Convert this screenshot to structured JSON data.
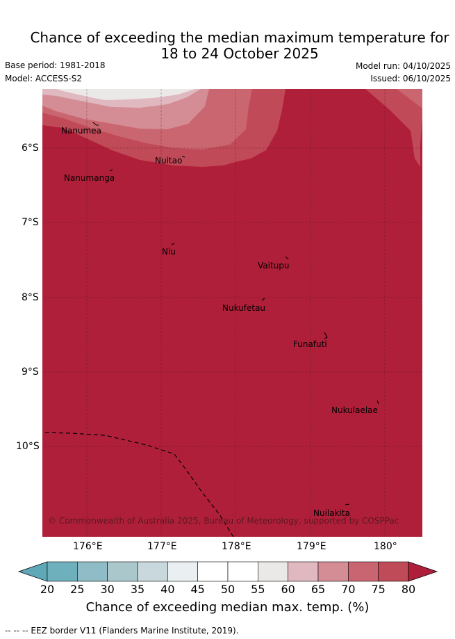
{
  "title": {
    "line1": "Chance of exceeding the median maximum temperature for",
    "line2": "18 to 24 October 2025"
  },
  "meta": {
    "base_period": "Base period: 1981-2018",
    "model": "Model: ACCESS-S2",
    "model_run": "Model run: 04/10/2025",
    "issued": "Issued: 06/10/2025"
  },
  "map": {
    "x_ticks": [
      "176°E",
      "177°E",
      "178°E",
      "179°E",
      "180°"
    ],
    "y_ticks": [
      "6°S",
      "7°S",
      "8°S",
      "9°S",
      "10°S"
    ],
    "places": [
      "Nanumea",
      "Nuitao",
      "Nanumanga",
      "Niu",
      "Vaitupu",
      "Nukufetau",
      "Funafuti",
      "Nukulaelae",
      "Nuilakita"
    ],
    "copyright": "© Commonwealth of Australia 2025, Bureau of Meteorology, supported by COSPPac"
  },
  "colorbar": {
    "labels": [
      "20",
      "25",
      "30",
      "35",
      "40",
      "45",
      "50",
      "55",
      "60",
      "65",
      "70",
      "75",
      "80"
    ],
    "colors": [
      "#5ea8b8",
      "#6eb0bc",
      "#8fbcc6",
      "#aac8cc",
      "#c8d8dc",
      "#eaf0f2",
      "#ffffff",
      "#ffffff",
      "#ebe9e8",
      "#e0b8bf",
      "#d48c95",
      "#c96570",
      "#bf4a58",
      "#b01f3a"
    ],
    "title": "Chance of exceeding median max. temp. (%)"
  },
  "legend": {
    "eez": "-- -- -- EEZ border V11 (Flanders Marine Institute, 2019)."
  }
}
